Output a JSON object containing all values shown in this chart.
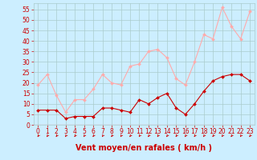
{
  "title": "",
  "xlabel": "Vent moyen/en rafales ( km/h )",
  "ylabel": "",
  "bg_color": "#cceeff",
  "grid_color": "#aacccc",
  "mean_color": "#cc0000",
  "gust_color": "#ffaaaa",
  "arrow_color": "#cc0000",
  "xlim": [
    -0.5,
    23.5
  ],
  "ylim": [
    0,
    58
  ],
  "yticks": [
    0,
    5,
    10,
    15,
    20,
    25,
    30,
    35,
    40,
    45,
    50,
    55
  ],
  "xticks": [
    0,
    1,
    2,
    3,
    4,
    5,
    6,
    7,
    8,
    9,
    10,
    11,
    12,
    13,
    14,
    15,
    16,
    17,
    18,
    19,
    20,
    21,
    22,
    23
  ],
  "mean_wind": [
    7,
    7,
    7,
    3,
    4,
    4,
    4,
    8,
    8,
    7,
    6,
    12,
    10,
    13,
    15,
    8,
    5,
    10,
    16,
    21,
    23,
    24,
    24,
    21
  ],
  "gust_wind": [
    19,
    24,
    14,
    6,
    12,
    12,
    17,
    24,
    20,
    19,
    28,
    29,
    35,
    36,
    32,
    22,
    19,
    30,
    43,
    41,
    56,
    47,
    41,
    54
  ],
  "figsize": [
    3.2,
    2.0
  ],
  "dpi": 100,
  "xlabel_color": "#cc0000",
  "xlabel_fontsize": 7,
  "tick_fontsize": 5.5,
  "tick_color": "#cc0000",
  "ytick_color": "#cc0000"
}
